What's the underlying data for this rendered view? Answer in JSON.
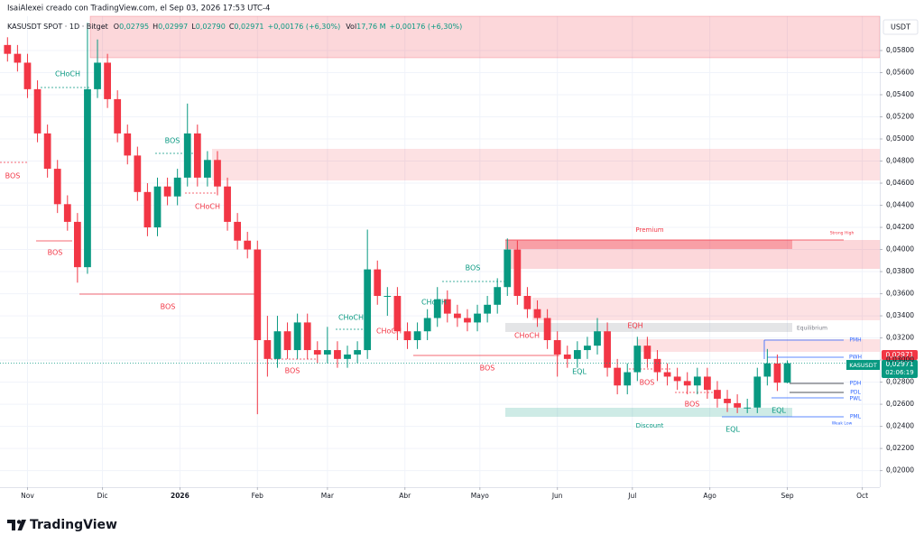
{
  "header": "IsaiAlexei creado con TradingView.com, el Sep 03, 2026 17:53 UTC-4",
  "legend": {
    "symbol": "KASUSDT SPOT · 1D · Bitget",
    "o_key": "O",
    "o": "0,02795",
    "h_key": "H",
    "h": "0,02997",
    "l_key": "L",
    "l": "0,02790",
    "c_key": "C",
    "c": "0,02971",
    "change": "+0,00176 (+6,30%)",
    "vol_key": "Vol",
    "vol": "17,76 M",
    "vol_change": "+0,00176 (+6,30%)"
  },
  "price_tags": {
    "unit": "USDT",
    "last_price": "0,02971",
    "symbol": "KASUSDT",
    "countdown": "02:06:19"
  },
  "annotations": [
    "CHoCH",
    "BOS",
    "BOS",
    "BOS",
    "BOS",
    "CHoCH",
    "CHoCH",
    "CHoCH",
    "BOS",
    "CHoCH",
    "BOS",
    "CHoCH",
    "BOS",
    "EQH",
    "EQL",
    "BOS",
    "BOS",
    "EQL",
    "EQL",
    "Premium",
    "Strong High",
    "Equilibrium",
    "Discount",
    "Weak Low",
    "PMH",
    "PWH",
    "PDH",
    "PDL",
    "PWL",
    "PML"
  ],
  "footer": "TradingView",
  "chart_data": {
    "type": "candlestick",
    "x": [
      -8,
      -4,
      0,
      4,
      8,
      12,
      16,
      20,
      24,
      28,
      32,
      36,
      40,
      44,
      48,
      52,
      56,
      60,
      64,
      68,
      72,
      76,
      80,
      84,
      88,
      92,
      96,
      100,
      104,
      108,
      112,
      116,
      120,
      124,
      128,
      132,
      136,
      140,
      144,
      148,
      152,
      156,
      160,
      164,
      168,
      172,
      176,
      180,
      184,
      188,
      192,
      196,
      200,
      204,
      208,
      212,
      216,
      220,
      224,
      228,
      232,
      236,
      240,
      244,
      248,
      252,
      256,
      260,
      264,
      268,
      272,
      276,
      280,
      284,
      288,
      292,
      296,
      300,
      304
    ],
    "open": [
      0.0585,
      0.0577,
      0.0569,
      0.0545,
      0.0505,
      0.0473,
      0.0441,
      0.0425,
      0.0384,
      0.0545,
      0.0569,
      0.0536,
      0.0505,
      0.0485,
      0.0452,
      0.042,
      0.0457,
      0.0448,
      0.0465,
      0.0505,
      0.0465,
      0.0481,
      0.0457,
      0.0425,
      0.0408,
      0.04,
      0.0318,
      0.0301,
      0.0326,
      0.0309,
      0.0334,
      0.0309,
      0.0305,
      0.0309,
      0.0301,
      0.0305,
      0.0309,
      0.0382,
      0.0358,
      0.0358,
      0.0326,
      0.0318,
      0.0326,
      0.0338,
      0.0355,
      0.0342,
      0.0338,
      0.0334,
      0.0342,
      0.035,
      0.0366,
      0.04,
      0.0358,
      0.0346,
      0.0338,
      0.0318,
      0.0305,
      0.0301,
      0.0309,
      0.0313,
      0.0326,
      0.0293,
      0.0277,
      0.0289,
      0.0313,
      0.0301,
      0.0289,
      0.0285,
      0.0281,
      0.0277,
      0.0285,
      0.0273,
      0.0265,
      0.0261,
      0.0257,
      0.0257,
      0.0285,
      0.0297,
      0.02795
    ],
    "high": [
      0.0592,
      0.0585,
      0.0577,
      0.0553,
      0.0513,
      0.0481,
      0.0449,
      0.0433,
      0.0605,
      0.059,
      0.0577,
      0.0544,
      0.0513,
      0.0493,
      0.046,
      0.0465,
      0.0465,
      0.0473,
      0.0532,
      0.0513,
      0.0489,
      0.0489,
      0.0465,
      0.0433,
      0.0416,
      0.0408,
      0.034,
      0.034,
      0.0334,
      0.0342,
      0.0342,
      0.0317,
      0.033,
      0.0317,
      0.0313,
      0.0317,
      0.0418,
      0.039,
      0.0366,
      0.0366,
      0.0334,
      0.0334,
      0.0346,
      0.0366,
      0.0363,
      0.035,
      0.0346,
      0.035,
      0.0358,
      0.0374,
      0.041,
      0.0408,
      0.0366,
      0.0354,
      0.0346,
      0.0326,
      0.0313,
      0.0317,
      0.0321,
      0.0338,
      0.0334,
      0.0301,
      0.0297,
      0.0321,
      0.0321,
      0.0309,
      0.0297,
      0.0293,
      0.0289,
      0.0293,
      0.0293,
      0.0281,
      0.0273,
      0.0269,
      0.0265,
      0.0293,
      0.031,
      0.0305,
      0.02997
    ],
    "low": [
      0.057,
      0.0561,
      0.0537,
      0.0497,
      0.0465,
      0.0433,
      0.0417,
      0.037,
      0.0378,
      0.0537,
      0.0528,
      0.0497,
      0.0477,
      0.0444,
      0.0412,
      0.0412,
      0.044,
      0.044,
      0.0457,
      0.0457,
      0.0457,
      0.0449,
      0.0417,
      0.04,
      0.0392,
      0.0251,
      0.0285,
      0.0293,
      0.0301,
      0.0301,
      0.0301,
      0.0297,
      0.0297,
      0.0293,
      0.0293,
      0.0297,
      0.0301,
      0.035,
      0.034,
      0.0318,
      0.031,
      0.031,
      0.0318,
      0.033,
      0.0334,
      0.033,
      0.0326,
      0.0326,
      0.0334,
      0.0342,
      0.0358,
      0.035,
      0.0338,
      0.033,
      0.031,
      0.0285,
      0.0293,
      0.0293,
      0.0301,
      0.0305,
      0.0285,
      0.0269,
      0.0269,
      0.0281,
      0.0293,
      0.0281,
      0.0277,
      0.0273,
      0.0269,
      0.0269,
      0.0265,
      0.0257,
      0.0253,
      0.0252,
      0.0252,
      0.0252,
      0.0277,
      0.0272,
      0.0279
    ],
    "close": [
      0.0577,
      0.0569,
      0.0545,
      0.0505,
      0.0473,
      0.0441,
      0.0425,
      0.0384,
      0.0545,
      0.0569,
      0.0536,
      0.0505,
      0.0485,
      0.0452,
      0.042,
      0.0457,
      0.0448,
      0.0465,
      0.0505,
      0.0465,
      0.0481,
      0.0457,
      0.0425,
      0.0408,
      0.04,
      0.0318,
      0.0301,
      0.0326,
      0.0309,
      0.0334,
      0.0309,
      0.0305,
      0.0309,
      0.0301,
      0.0305,
      0.0309,
      0.0382,
      0.0358,
      0.0358,
      0.0326,
      0.0318,
      0.0326,
      0.0338,
      0.0355,
      0.0342,
      0.0338,
      0.0334,
      0.0342,
      0.035,
      0.0366,
      0.04,
      0.0358,
      0.0346,
      0.0338,
      0.0318,
      0.0305,
      0.0301,
      0.0309,
      0.0313,
      0.0326,
      0.0293,
      0.0277,
      0.0289,
      0.0313,
      0.0301,
      0.0289,
      0.0285,
      0.0281,
      0.0277,
      0.0285,
      0.0273,
      0.0265,
      0.0261,
      0.0257,
      0.0257,
      0.0285,
      0.0297,
      0.02795,
      0.02971
    ],
    "up_color": "#089981",
    "down_color": "#f23645",
    "xlim": [
      -11,
      341
    ],
    "xticks": [
      {
        "value": 0,
        "label": "Nov"
      },
      {
        "value": 30,
        "label": "Dic"
      },
      {
        "value": 61,
        "label": "2026"
      },
      {
        "value": 92,
        "label": "Feb"
      },
      {
        "value": 120,
        "label": "Mar"
      },
      {
        "value": 151,
        "label": "Abr"
      },
      {
        "value": 181,
        "label": "Mayo"
      },
      {
        "value": 212,
        "label": "Jun"
      },
      {
        "value": 242,
        "label": "Jul"
      },
      {
        "value": 273,
        "label": "Ago"
      },
      {
        "value": 304,
        "label": "Sep"
      },
      {
        "value": 334,
        "label": "Oct"
      }
    ],
    "ylim": [
      0.0185,
      0.0611
    ],
    "yticks": [
      {
        "value": 0.058,
        "label": "0,05800"
      },
      {
        "value": 0.056,
        "label": "0,05600"
      },
      {
        "value": 0.054,
        "label": "0,05400"
      },
      {
        "value": 0.052,
        "label": "0,05200"
      },
      {
        "value": 0.05,
        "label": "0,05000"
      },
      {
        "value": 0.048,
        "label": "0,04800"
      },
      {
        "value": 0.046,
        "label": "0,04600"
      },
      {
        "value": 0.044,
        "label": "0,04400"
      },
      {
        "value": 0.042,
        "label": "0,04200"
      },
      {
        "value": 0.04,
        "label": "0,04000"
      },
      {
        "value": 0.038,
        "label": "0,03800"
      },
      {
        "value": 0.036,
        "label": "0,03600"
      },
      {
        "value": 0.034,
        "label": "0,03400"
      },
      {
        "value": 0.032,
        "label": "0,03200"
      },
      {
        "value": 0.03,
        "label": "0,03000"
      },
      {
        "value": 0.028,
        "label": "0,02800"
      },
      {
        "value": 0.026,
        "label": "0,02600"
      },
      {
        "value": 0.024,
        "label": "0,02400"
      },
      {
        "value": 0.022,
        "label": "0,02200"
      },
      {
        "value": 0.02,
        "label": "0,02000"
      }
    ],
    "grid": true
  }
}
